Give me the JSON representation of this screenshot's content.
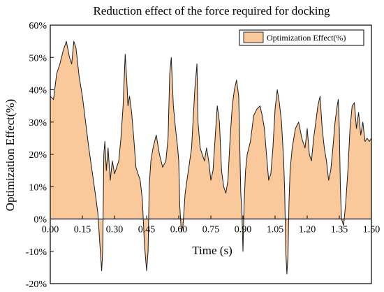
{
  "chart_data": {
    "type": "area",
    "title": "Reduction effect of the force required for docking",
    "xlabel": "Time (s)",
    "ylabel": "Optimization Effect(%)",
    "xlim": [
      0,
      1.5
    ],
    "ylim": [
      -20,
      60
    ],
    "xticks": [
      "0.00",
      "0.15",
      "0.30",
      "0.45",
      "0.60",
      "0.75",
      "0.90",
      "1.05",
      "1.20",
      "1.35",
      "1.50"
    ],
    "yticks": [
      "-20%",
      "-10%",
      "0%",
      "10%",
      "20%",
      "30%",
      "40%",
      "50%",
      "60%"
    ],
    "grid": false,
    "legend_position": "top-right",
    "colors": {
      "fill": "#f9c89b",
      "line": "#1a1a1a",
      "axis": "#000000"
    },
    "series": [
      {
        "name": "Optimization Effect(%)",
        "x": [
          0.0,
          0.015,
          0.03,
          0.045,
          0.06,
          0.075,
          0.09,
          0.1,
          0.11,
          0.12,
          0.135,
          0.15,
          0.165,
          0.18,
          0.195,
          0.21,
          0.222,
          0.232,
          0.24,
          0.245,
          0.25,
          0.255,
          0.262,
          0.27,
          0.28,
          0.29,
          0.3,
          0.31,
          0.32,
          0.33,
          0.34,
          0.35,
          0.358,
          0.363,
          0.37,
          0.38,
          0.39,
          0.4,
          0.41,
          0.42,
          0.43,
          0.44,
          0.45,
          0.457,
          0.462,
          0.47,
          0.48,
          0.495,
          0.51,
          0.525,
          0.54,
          0.55,
          0.558,
          0.565,
          0.575,
          0.585,
          0.595,
          0.6,
          0.605,
          0.612,
          0.62,
          0.63,
          0.645,
          0.66,
          0.675,
          0.685,
          0.69,
          0.7,
          0.71,
          0.72,
          0.73,
          0.74,
          0.75,
          0.76,
          0.77,
          0.78,
          0.79,
          0.8,
          0.81,
          0.82,
          0.83,
          0.84,
          0.85,
          0.86,
          0.87,
          0.88,
          0.89,
          0.895,
          0.9,
          0.905,
          0.912,
          0.92,
          0.935,
          0.95,
          0.965,
          0.98,
          0.99,
          1.0,
          1.01,
          1.02,
          1.03,
          1.04,
          1.05,
          1.06,
          1.07,
          1.08,
          1.09,
          1.095,
          1.1,
          1.105,
          1.11,
          1.115,
          1.12,
          1.13,
          1.145,
          1.16,
          1.175,
          1.19,
          1.2,
          1.21,
          1.22,
          1.23,
          1.24,
          1.25,
          1.26,
          1.27,
          1.28,
          1.29,
          1.3,
          1.31,
          1.32,
          1.33,
          1.34,
          1.345,
          1.35,
          1.355,
          1.36,
          1.37,
          1.38,
          1.39,
          1.4,
          1.41,
          1.42,
          1.43,
          1.44,
          1.45,
          1.46,
          1.47,
          1.48,
          1.49,
          1.5
        ],
        "values": [
          38,
          37,
          45,
          48,
          52,
          55,
          50,
          48,
          55,
          53,
          44,
          38,
          30,
          22,
          15,
          8,
          2,
          -8,
          -16,
          -10,
          20,
          24,
          15,
          22,
          12,
          18,
          14,
          16,
          18,
          25,
          35,
          51,
          42,
          35,
          38,
          33,
          25,
          16,
          14,
          12,
          6,
          -8,
          -16,
          -10,
          10,
          18,
          22,
          26,
          20,
          16,
          18,
          25,
          45,
          50,
          35,
          28,
          22,
          18,
          4,
          -4,
          -2,
          8,
          15,
          22,
          40,
          48,
          30,
          22,
          20,
          18,
          22,
          18,
          12,
          15,
          25,
          35,
          30,
          15,
          10,
          8,
          12,
          25,
          35,
          40,
          43,
          38,
          8,
          2,
          -10,
          4,
          15,
          20,
          24,
          32,
          34,
          35,
          32,
          28,
          20,
          12,
          14,
          22,
          34,
          40,
          36,
          30,
          18,
          8,
          -10,
          -17,
          -12,
          5,
          15,
          22,
          28,
          30,
          25,
          22,
          28,
          20,
          18,
          25,
          30,
          35,
          38,
          28,
          22,
          18,
          12,
          15,
          22,
          30,
          35,
          37,
          28,
          10,
          0,
          -2,
          5,
          15,
          28,
          35,
          36,
          28,
          33,
          26,
          30,
          24,
          25,
          24,
          25
        ]
      }
    ]
  }
}
